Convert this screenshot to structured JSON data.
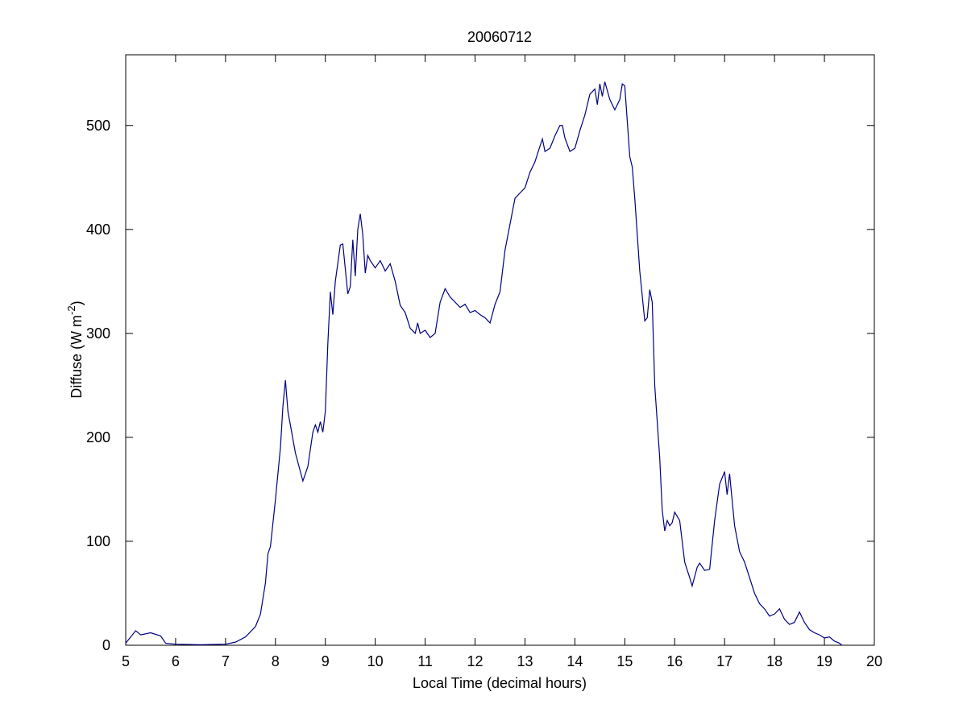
{
  "chart_data": {
    "type": "line",
    "title": "20060712",
    "xlabel": "Local Time (decimal hours)",
    "ylabel": [
      "Diffuse (W m",
      "-2",
      ")"
    ],
    "color": "#00007f",
    "xlim": [
      5,
      20
    ],
    "xticks": [
      5,
      6,
      7,
      8,
      9,
      10,
      11,
      12,
      13,
      14,
      15,
      16,
      17,
      18,
      19,
      20
    ],
    "ylim": [
      0,
      568
    ],
    "yticks": [
      0,
      100,
      200,
      300,
      400,
      500
    ],
    "x": [
      5.0,
      5.2,
      5.3,
      5.5,
      5.7,
      5.8,
      6.0,
      6.5,
      7.0,
      7.2,
      7.4,
      7.6,
      7.7,
      7.8,
      7.85,
      7.9,
      8.0,
      8.1,
      8.15,
      8.2,
      8.25,
      8.4,
      8.55,
      8.65,
      8.75,
      8.8,
      8.85,
      8.9,
      8.95,
      9.0,
      9.05,
      9.1,
      9.15,
      9.2,
      9.3,
      9.35,
      9.45,
      9.5,
      9.55,
      9.6,
      9.65,
      9.7,
      9.75,
      9.8,
      9.85,
      9.9,
      10.0,
      10.1,
      10.2,
      10.3,
      10.4,
      10.5,
      10.6,
      10.7,
      10.8,
      10.85,
      10.9,
      11.0,
      11.1,
      11.2,
      11.3,
      11.4,
      11.5,
      11.6,
      11.7,
      11.8,
      11.9,
      12.0,
      12.1,
      12.2,
      12.3,
      12.4,
      12.5,
      12.6,
      12.7,
      12.8,
      12.9,
      13.0,
      13.1,
      13.2,
      13.3,
      13.35,
      13.4,
      13.5,
      13.6,
      13.7,
      13.75,
      13.8,
      13.9,
      14.0,
      14.1,
      14.2,
      14.3,
      14.4,
      14.45,
      14.5,
      14.55,
      14.6,
      14.7,
      14.8,
      14.9,
      14.95,
      15.0,
      15.1,
      15.15,
      15.2,
      15.3,
      15.4,
      15.45,
      15.5,
      15.55,
      15.6,
      15.7,
      15.75,
      15.8,
      15.85,
      15.9,
      15.95,
      16.0,
      16.1,
      16.2,
      16.3,
      16.35,
      16.45,
      16.5,
      16.6,
      16.7,
      16.8,
      16.9,
      17.0,
      17.05,
      17.1,
      17.2,
      17.3,
      17.4,
      17.5,
      17.6,
      17.7,
      17.8,
      17.9,
      18.0,
      18.1,
      18.2,
      18.3,
      18.4,
      18.5,
      18.6,
      18.7,
      18.8,
      18.9,
      19.0,
      19.1,
      19.2,
      19.3,
      19.35
    ],
    "values": [
      2,
      14,
      10,
      12,
      9,
      2,
      1,
      0.5,
      1,
      3,
      8,
      18,
      30,
      60,
      88,
      95,
      140,
      190,
      230,
      255,
      225,
      185,
      158,
      172,
      205,
      212,
      205,
      215,
      205,
      225,
      290,
      340,
      318,
      350,
      385,
      386,
      338,
      345,
      390,
      355,
      400,
      415,
      395,
      358,
      375,
      370,
      363,
      370,
      360,
      367,
      350,
      327,
      320,
      305,
      300,
      310,
      300,
      303,
      296,
      300,
      330,
      343,
      335,
      330,
      325,
      328,
      320,
      322,
      318,
      315,
      310,
      328,
      340,
      380,
      405,
      430,
      435,
      440,
      455,
      465,
      480,
      487,
      475,
      478,
      490,
      500,
      500,
      488,
      475,
      478,
      495,
      510,
      530,
      535,
      520,
      540,
      528,
      542,
      525,
      515,
      525,
      540,
      538,
      470,
      460,
      430,
      360,
      312,
      315,
      342,
      330,
      250,
      180,
      130,
      110,
      120,
      115,
      118,
      128,
      120,
      80,
      65,
      57,
      75,
      79,
      72,
      73,
      120,
      155,
      167,
      145,
      165,
      115,
      90,
      80,
      65,
      50,
      40,
      35,
      28,
      30,
      35,
      25,
      20,
      22,
      32,
      22,
      15,
      12,
      10,
      7,
      8,
      4,
      2,
      0
    ]
  }
}
